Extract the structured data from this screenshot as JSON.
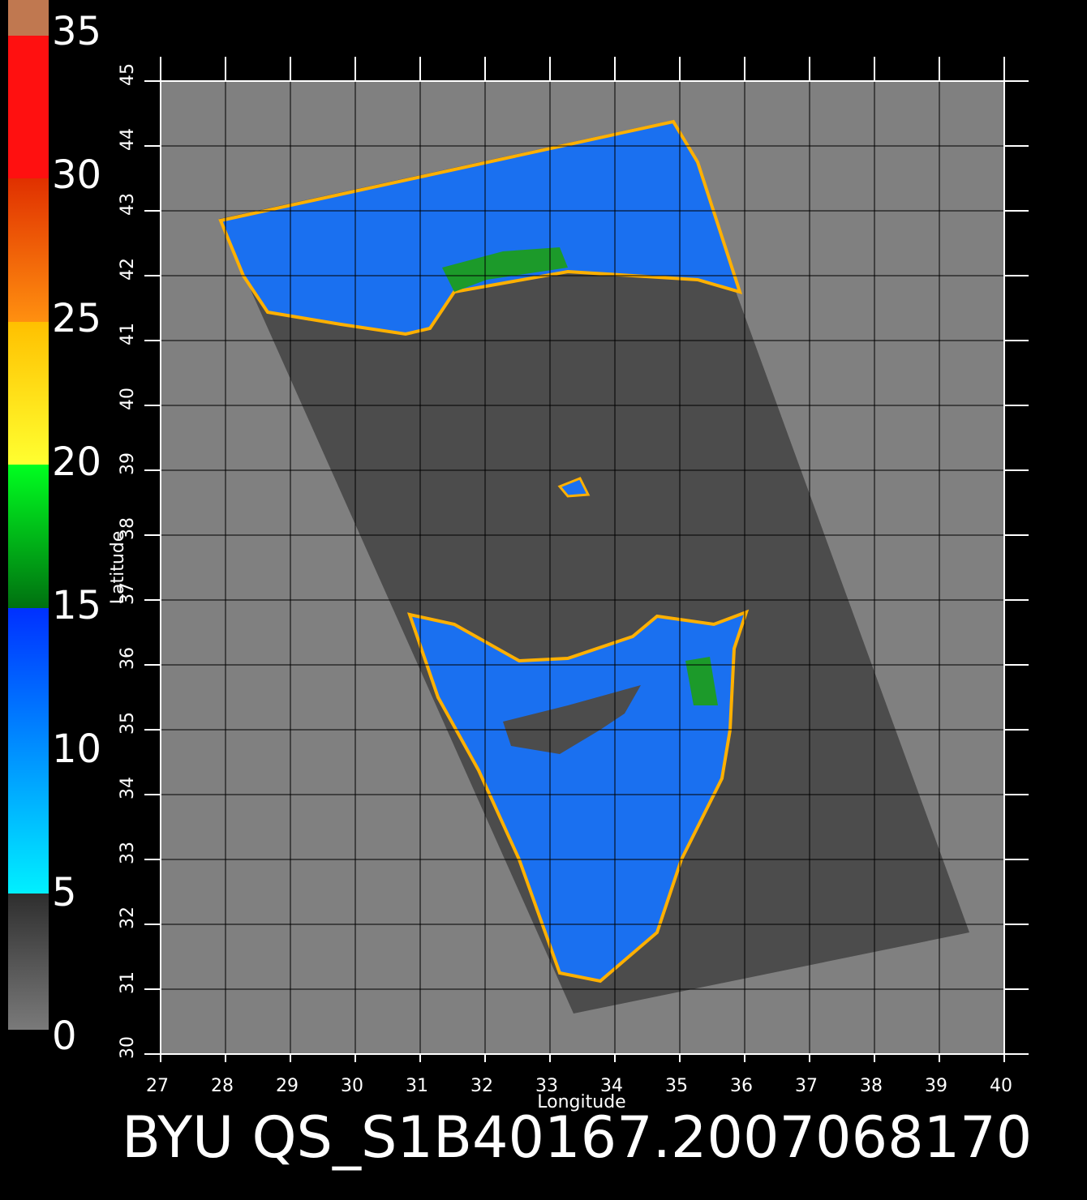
{
  "chart_data": {
    "type": "map",
    "title": "BYU QS_S1B40167.2007068170",
    "x_label": "Longitude",
    "y_label": "Latitude",
    "xlim": [
      27,
      40
    ],
    "xticks": [
      27,
      28,
      29,
      30,
      31,
      32,
      33,
      34,
      35,
      36,
      37,
      38,
      39,
      40
    ],
    "ylim": [
      30,
      45
    ],
    "yticks": [
      30,
      31,
      32,
      33,
      34,
      35,
      36,
      37,
      38,
      39,
      40,
      41,
      42,
      43,
      44,
      45
    ],
    "grid": true,
    "colorbar": {
      "lim": [
        0,
        35
      ],
      "ticks": [
        0,
        5,
        10,
        15,
        20,
        25,
        30,
        35
      ]
    }
  }
}
